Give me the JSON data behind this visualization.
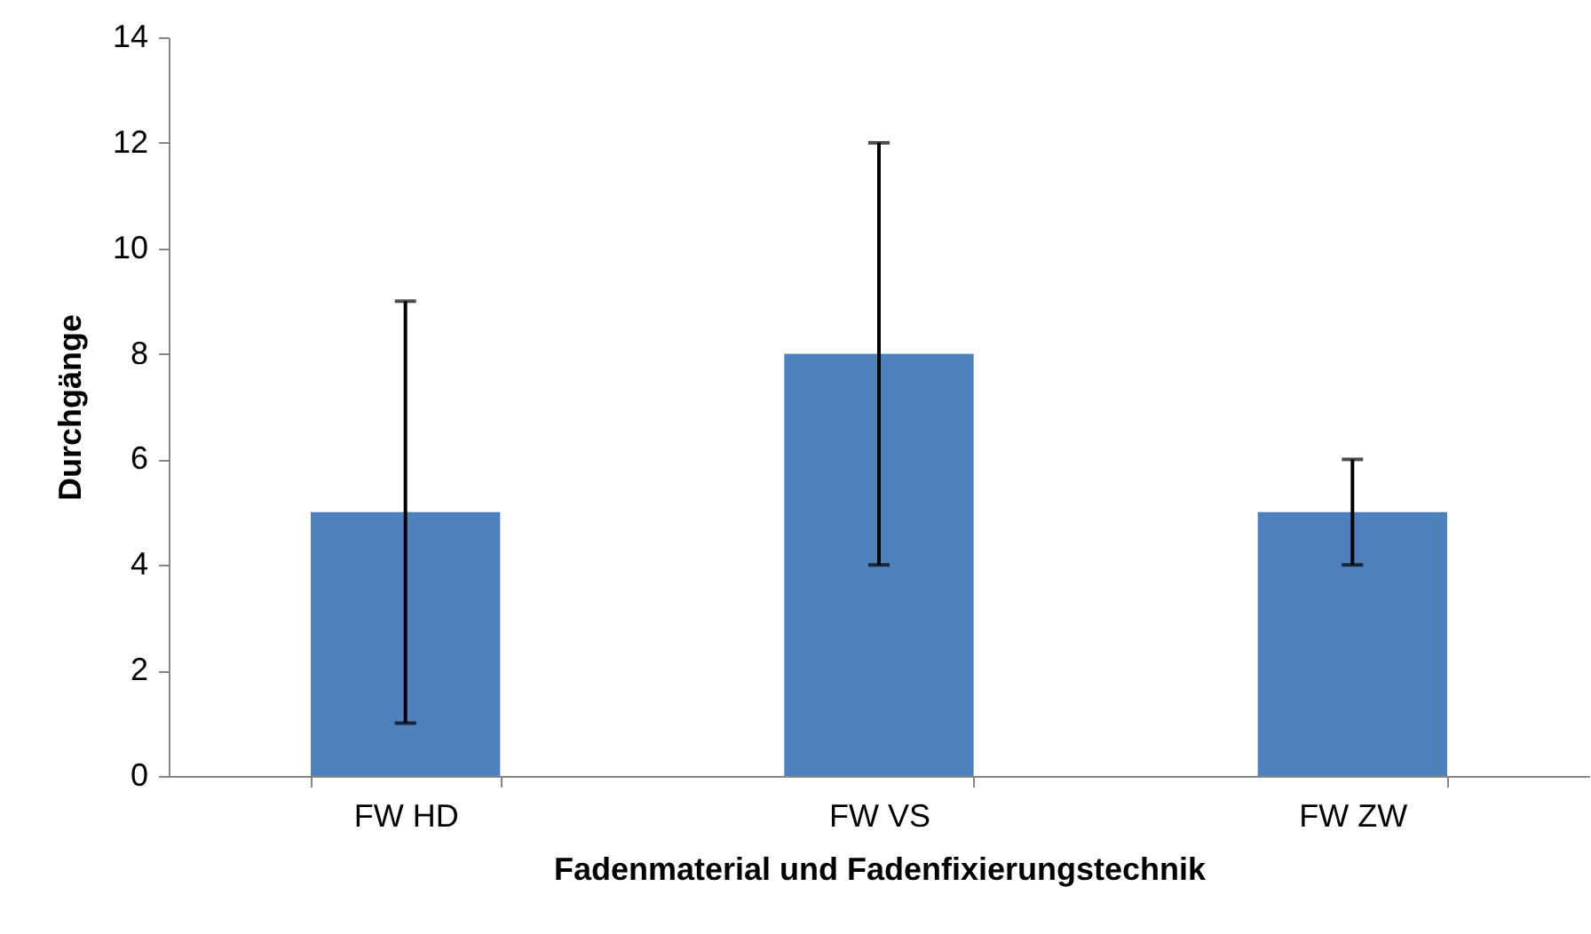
{
  "chart_data": {
    "type": "bar",
    "xlabel": "Fadenmaterial und Fadenfixierungstechnik",
    "ylabel": "Durchgänge",
    "categories": [
      "FW HD",
      "FW VS",
      "FW ZW"
    ],
    "values": [
      5,
      8,
      5
    ],
    "color": "#4f81bd",
    "errors": [
      4,
      4,
      1
    ],
    "ylim": [
      0,
      14
    ],
    "yticks": [
      0,
      2,
      4,
      6,
      8,
      10,
      12,
      14
    ],
    "grid": false
  }
}
